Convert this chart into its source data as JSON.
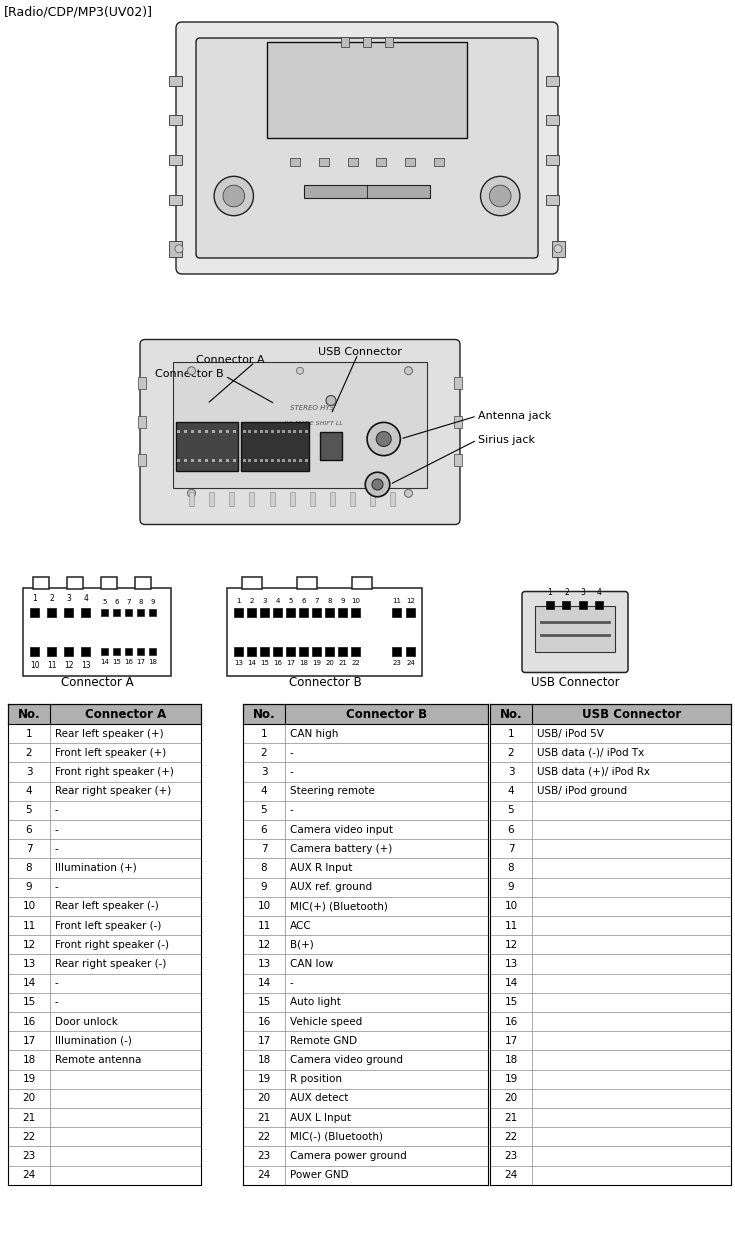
{
  "title": "[Radio/CDP/MP3(UV02)]",
  "connector_a_data": [
    [
      1,
      "Rear left speaker (+)"
    ],
    [
      2,
      "Front left speaker (+)"
    ],
    [
      3,
      "Front right speaker (+)"
    ],
    [
      4,
      "Rear right speaker (+)"
    ],
    [
      5,
      "-"
    ],
    [
      6,
      "-"
    ],
    [
      7,
      "-"
    ],
    [
      8,
      "Illumination (+)"
    ],
    [
      9,
      "-"
    ],
    [
      10,
      "Rear left speaker (-)"
    ],
    [
      11,
      "Front left speaker (-)"
    ],
    [
      12,
      "Front right speaker (-)"
    ],
    [
      13,
      "Rear right speaker (-)"
    ],
    [
      14,
      "-"
    ],
    [
      15,
      "-"
    ],
    [
      16,
      "Door unlock"
    ],
    [
      17,
      "Illumination (-)"
    ],
    [
      18,
      "Remote antenna"
    ],
    [
      19,
      ""
    ],
    [
      20,
      ""
    ],
    [
      21,
      ""
    ],
    [
      22,
      ""
    ],
    [
      23,
      ""
    ],
    [
      24,
      ""
    ]
  ],
  "connector_b_data": [
    [
      1,
      "CAN high"
    ],
    [
      2,
      "-"
    ],
    [
      3,
      "-"
    ],
    [
      4,
      "Steering remote"
    ],
    [
      5,
      "-"
    ],
    [
      6,
      "Camera video input"
    ],
    [
      7,
      "Camera battery (+)"
    ],
    [
      8,
      "AUX R Input"
    ],
    [
      9,
      "AUX ref. ground"
    ],
    [
      10,
      "MIC(+) (Bluetooth)"
    ],
    [
      11,
      "ACC"
    ],
    [
      12,
      "B(+)"
    ],
    [
      13,
      "CAN low"
    ],
    [
      14,
      "-"
    ],
    [
      15,
      "Auto light"
    ],
    [
      16,
      "Vehicle speed"
    ],
    [
      17,
      "Remote GND"
    ],
    [
      18,
      "Camera video ground"
    ],
    [
      19,
      "R position"
    ],
    [
      20,
      "AUX detect"
    ],
    [
      21,
      "AUX L Input"
    ],
    [
      22,
      "MIC(-) (Bluetooth)"
    ],
    [
      23,
      "Camera power ground"
    ],
    [
      24,
      "Power GND"
    ]
  ],
  "usb_connector_data": [
    [
      1,
      "USB/ iPod 5V"
    ],
    [
      2,
      "USB data (-)/ iPod Tx"
    ],
    [
      3,
      "USB data (+)/ iPod Rx"
    ],
    [
      4,
      "USB/ iPod ground"
    ],
    [
      5,
      ""
    ],
    [
      6,
      ""
    ],
    [
      7,
      ""
    ],
    [
      8,
      ""
    ],
    [
      9,
      ""
    ],
    [
      10,
      ""
    ],
    [
      11,
      ""
    ],
    [
      12,
      ""
    ],
    [
      13,
      ""
    ],
    [
      14,
      ""
    ],
    [
      15,
      ""
    ],
    [
      16,
      ""
    ],
    [
      17,
      ""
    ],
    [
      18,
      ""
    ],
    [
      19,
      ""
    ],
    [
      20,
      ""
    ],
    [
      21,
      ""
    ],
    [
      22,
      ""
    ],
    [
      23,
      ""
    ],
    [
      24,
      ""
    ]
  ],
  "bg_color": "#ffffff",
  "header_bg": "#b0b0b0",
  "font_size_title": 9,
  "font_size_table": 7.5,
  "font_size_header": 8.5
}
